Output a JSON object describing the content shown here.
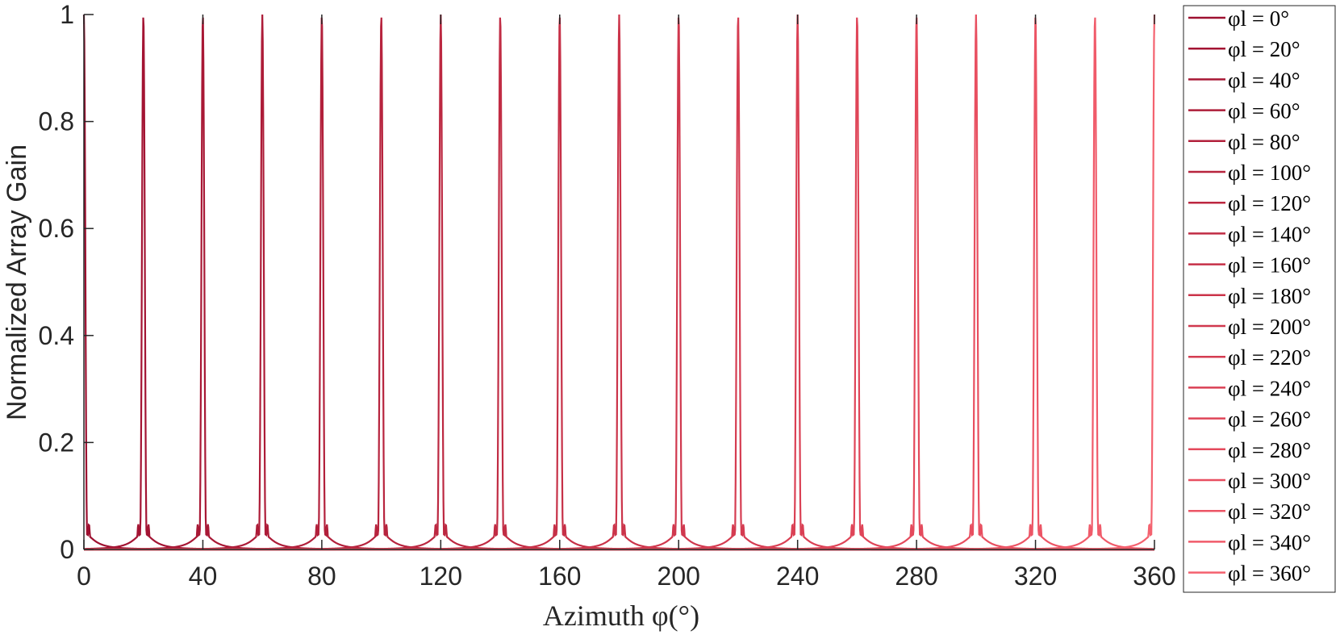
{
  "chart_data": {
    "type": "line",
    "title": "",
    "xlabel": "Azimuth φ(°)",
    "ylabel": "Normalized Array Gain",
    "xlim": [
      0,
      360
    ],
    "ylim": [
      0,
      1
    ],
    "xticks": [
      0,
      40,
      80,
      120,
      160,
      200,
      240,
      280,
      320,
      360
    ],
    "yticks": [
      0,
      0.2,
      0.4,
      0.6,
      0.8,
      1
    ],
    "ytick_labels": [
      "0",
      "0.2",
      "0.4",
      "0.6",
      "0.8",
      "1"
    ],
    "grid": false,
    "legend_position": "right-outside",
    "peak_value": 1,
    "series": [
      {
        "name": "φl = 0°",
        "peak_azimuth": 0,
        "color": "#9E1030"
      },
      {
        "name": "φl = 20°",
        "peak_azimuth": 20,
        "color": "#A31433"
      },
      {
        "name": "φl = 40°",
        "peak_azimuth": 40,
        "color": "#A81835"
      },
      {
        "name": "φl = 60°",
        "peak_azimuth": 60,
        "color": "#AD1C38"
      },
      {
        "name": "φl = 80°",
        "peak_azimuth": 80,
        "color": "#B2203B"
      },
      {
        "name": "φl = 100°",
        "peak_azimuth": 100,
        "color": "#B7243E"
      },
      {
        "name": "φl = 120°",
        "peak_azimuth": 120,
        "color": "#BC2841"
      },
      {
        "name": "φl = 140°",
        "peak_azimuth": 140,
        "color": "#C12C44"
      },
      {
        "name": "φl = 160°",
        "peak_azimuth": 160,
        "color": "#C63047"
      },
      {
        "name": "φl = 180°",
        "peak_azimuth": 180,
        "color": "#CB344A"
      },
      {
        "name": "φl = 200°",
        "peak_azimuth": 200,
        "color": "#D0384E"
      },
      {
        "name": "φl = 220°",
        "peak_azimuth": 220,
        "color": "#D53C51"
      },
      {
        "name": "φl = 240°",
        "peak_azimuth": 240,
        "color": "#DA4054"
      },
      {
        "name": "φl = 260°",
        "peak_azimuth": 260,
        "color": "#DF4558"
      },
      {
        "name": "φl = 280°",
        "peak_azimuth": 280,
        "color": "#E44A5C"
      },
      {
        "name": "φl = 300°",
        "peak_azimuth": 300,
        "color": "#E84F60"
      },
      {
        "name": "φl = 320°",
        "peak_azimuth": 320,
        "color": "#EC5565"
      },
      {
        "name": "φl = 340°",
        "peak_azimuth": 340,
        "color": "#F05B6A"
      },
      {
        "name": "φl = 360°",
        "peak_azimuth": 360,
        "color": "#F4626F"
      }
    ]
  }
}
